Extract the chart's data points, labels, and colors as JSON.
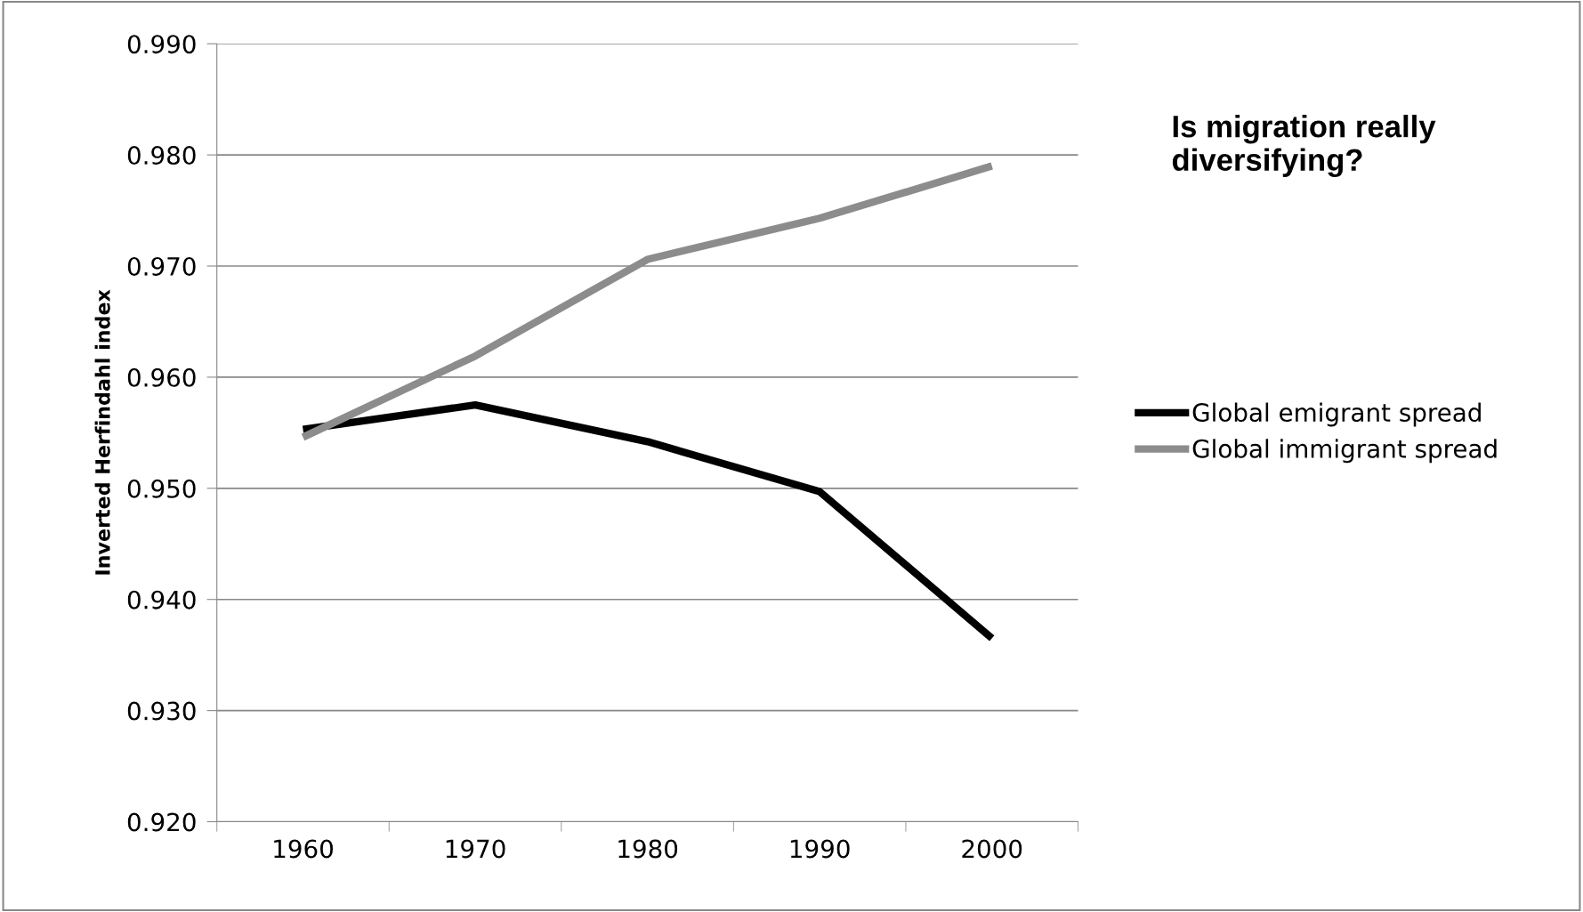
{
  "chart_data": {
    "type": "line",
    "title": "Is migration really diversifying?",
    "ylabel": "Inverted Herfindahl index",
    "categories": [
      "1960",
      "1970",
      "1980",
      "1990",
      "2000"
    ],
    "series": [
      {
        "name": "Global emigrant spread",
        "color": "#000000",
        "values": [
          0.9553,
          0.9575,
          0.9542,
          0.9497,
          0.9365
        ]
      },
      {
        "name": "Global immigrant spread",
        "color": "#8c8c8c",
        "values": [
          0.9546,
          0.9619,
          0.9706,
          0.9743,
          0.979
        ]
      }
    ],
    "ylim": [
      0.92,
      0.99
    ],
    "yticks": [
      {
        "value": 0.92,
        "label": "0.920"
      },
      {
        "value": 0.93,
        "label": "0.930"
      },
      {
        "value": 0.94,
        "label": "0.940"
      },
      {
        "value": 0.95,
        "label": "0.950"
      },
      {
        "value": 0.96,
        "label": "0.960"
      },
      {
        "value": 0.97,
        "label": "0.970"
      },
      {
        "value": 0.98,
        "label": "0.980"
      },
      {
        "value": 0.99,
        "label": "0.990"
      }
    ],
    "grid": "y",
    "legend": "right",
    "marker": "none",
    "line_style": "solid"
  }
}
